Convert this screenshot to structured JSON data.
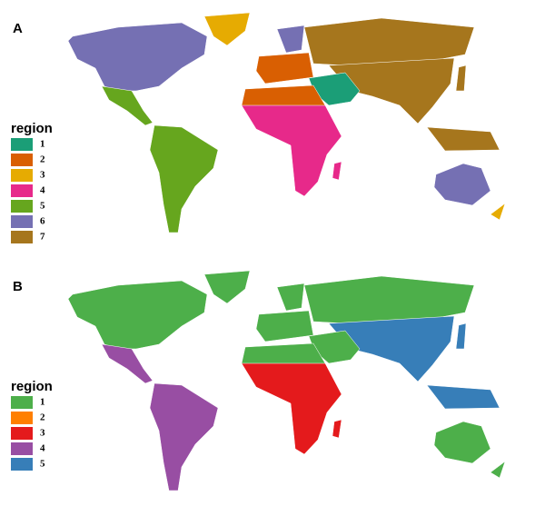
{
  "panels": [
    {
      "label": "A",
      "legend": {
        "title": "region",
        "items": [
          {
            "label": "1",
            "color": "#1b9e77"
          },
          {
            "label": "2",
            "color": "#d95f02"
          },
          {
            "label": "3",
            "color": "#e6ab02"
          },
          {
            "label": "4",
            "color": "#e7298a"
          },
          {
            "label": "5",
            "color": "#66a61e"
          },
          {
            "label": "6",
            "color": "#7570b3"
          },
          {
            "label": "7",
            "color": "#a6761d"
          }
        ]
      }
    },
    {
      "label": "B",
      "legend": {
        "title": "region",
        "items": [
          {
            "label": "1",
            "color": "#4daf4a"
          },
          {
            "label": "2",
            "color": "#ff7f00"
          },
          {
            "label": "3",
            "color": "#e41a1c"
          },
          {
            "label": "4",
            "color": "#984ea3"
          },
          {
            "label": "5",
            "color": "#377eb8"
          }
        ]
      }
    }
  ]
}
